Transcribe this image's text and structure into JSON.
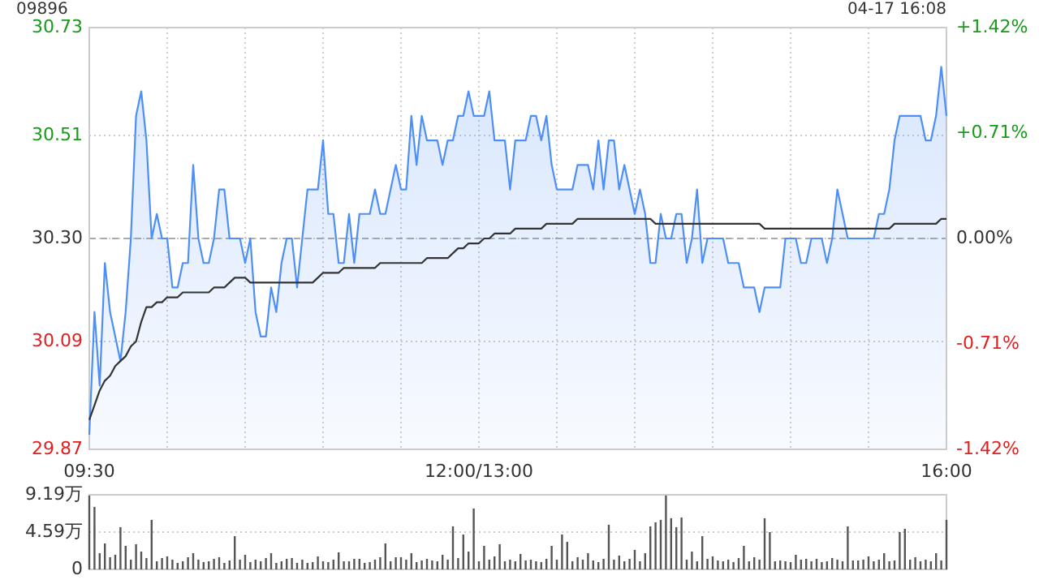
{
  "chart_data": [
    {
      "type": "line",
      "title": "09896",
      "annotations": [
        "04-17 16:08"
      ],
      "categories": [
        "09:30",
        null,
        null,
        null,
        null,
        null,
        null,
        null,
        null,
        null,
        null,
        null,
        null,
        null,
        null,
        null,
        null,
        null,
        null,
        null,
        null,
        null,
        null,
        null,
        null,
        null,
        null,
        null,
        null,
        null,
        null,
        null,
        null,
        null,
        null,
        null,
        null,
        null,
        null,
        null,
        null,
        null,
        null,
        null,
        null,
        null,
        null,
        null,
        null,
        null,
        null,
        null,
        null,
        null,
        null,
        null,
        null,
        null,
        null,
        null,
        null,
        null,
        null,
        null,
        null,
        null,
        null,
        null,
        null,
        null,
        null,
        null,
        null,
        null,
        null,
        "12:00/13:00",
        null,
        null,
        null,
        null,
        null,
        null,
        null,
        null,
        null,
        null,
        null,
        null,
        null,
        null,
        null,
        null,
        null,
        null,
        null,
        null,
        null,
        null,
        null,
        null,
        null,
        null,
        null,
        null,
        null,
        null,
        null,
        null,
        null,
        null,
        null,
        null,
        null,
        null,
        null,
        null,
        null,
        null,
        null,
        null,
        null,
        null,
        null,
        null,
        null,
        null,
        null,
        null,
        null,
        null,
        null,
        null,
        null,
        null,
        null,
        null,
        null,
        null,
        null,
        null,
        null,
        null,
        null,
        null,
        null,
        null,
        null,
        null,
        null,
        null,
        null,
        null,
        null,
        null,
        null,
        null,
        null,
        null,
        null,
        null,
        null,
        null,
        null,
        null,
        null,
        "16:00"
      ],
      "ylim": [
        29.87,
        30.73
      ],
      "yticks": [
        29.87,
        30.09,
        {
          "value": 30.3,
          "label": "30.30"
        },
        30.51,
        30.73
      ],
      "y2lim": [
        -1.42,
        1.42
      ],
      "y2ticks": [
        {
          "value": -1.42,
          "label": "-1.42%"
        },
        {
          "value": -0.71,
          "label": "-0.71%"
        },
        {
          "value": 0,
          "label": "0.00%"
        },
        {
          "value": 0.71,
          "label": "+0.71%"
        },
        {
          "value": 1.42,
          "label": "+1.42%"
        }
      ],
      "grid": true,
      "ref_lines": [
        {
          "axis": "y",
          "value": 30.3,
          "color": "#aaaaaa",
          "line_style": "dashed"
        }
      ],
      "series": [
        {
          "type": "area",
          "color": "#4e8ef7",
          "values": [
            29.9,
            30.15,
            30.0,
            30.25,
            30.15,
            30.1,
            30.05,
            30.15,
            30.3,
            30.55,
            30.6,
            30.5,
            30.3,
            30.35,
            30.3,
            30.3,
            30.2,
            30.2,
            30.25,
            30.25,
            30.45,
            30.3,
            30.25,
            30.25,
            30.3,
            30.4,
            30.4,
            30.3,
            30.3,
            30.3,
            30.25,
            30.3,
            30.15,
            30.1,
            30.1,
            30.2,
            30.15,
            30.25,
            30.3,
            30.3,
            30.2,
            30.3,
            30.4,
            30.4,
            30.4,
            30.5,
            30.35,
            30.35,
            30.25,
            30.25,
            30.35,
            30.25,
            30.35,
            30.35,
            30.35,
            30.4,
            30.35,
            30.35,
            30.4,
            30.45,
            30.4,
            30.4,
            30.55,
            30.45,
            30.55,
            30.5,
            30.5,
            30.5,
            30.45,
            30.5,
            30.5,
            30.55,
            30.55,
            30.6,
            30.55,
            30.55,
            30.55,
            30.6,
            30.5,
            30.5,
            30.5,
            30.4,
            30.5,
            30.5,
            30.5,
            30.55,
            30.55,
            30.5,
            30.55,
            30.45,
            30.4,
            30.4,
            30.4,
            30.4,
            30.45,
            30.45,
            30.45,
            30.4,
            30.5,
            30.4,
            30.5,
            30.5,
            30.4,
            30.45,
            30.4,
            30.35,
            30.4,
            30.35,
            30.25,
            30.25,
            30.35,
            30.3,
            30.3,
            30.35,
            30.35,
            30.25,
            30.3,
            30.4,
            30.25,
            30.3,
            30.3,
            30.3,
            30.3,
            30.25,
            30.25,
            30.25,
            30.2,
            30.2,
            30.2,
            30.15,
            30.2,
            30.2,
            30.2,
            30.2,
            30.3,
            30.3,
            30.3,
            30.25,
            30.25,
            30.3,
            30.3,
            30.3,
            30.25,
            30.3,
            30.4,
            30.35,
            30.3,
            30.3,
            30.3,
            30.3,
            30.3,
            30.3,
            30.35,
            30.35,
            30.4,
            30.5,
            30.55,
            30.55,
            30.55,
            30.55,
            30.55,
            30.5,
            30.5,
            30.55,
            30.65,
            30.55
          ]
        },
        {
          "color": "#333333",
          "values": [
            29.93,
            29.96,
            29.99,
            30.01,
            30.02,
            30.04,
            30.05,
            30.06,
            30.08,
            30.09,
            30.13,
            30.16,
            30.16,
            30.17,
            30.17,
            30.18,
            30.18,
            30.18,
            30.19,
            30.19,
            30.19,
            30.19,
            30.19,
            30.19,
            30.2,
            30.2,
            30.2,
            30.21,
            30.22,
            30.22,
            30.22,
            30.21,
            30.21,
            30.21,
            30.21,
            30.21,
            30.21,
            30.21,
            30.21,
            30.21,
            30.21,
            30.21,
            30.21,
            30.21,
            30.22,
            30.23,
            30.23,
            30.23,
            30.23,
            30.24,
            30.24,
            30.24,
            30.24,
            30.24,
            30.24,
            30.24,
            30.25,
            30.25,
            30.25,
            30.25,
            30.25,
            30.25,
            30.25,
            30.25,
            30.25,
            30.26,
            30.26,
            30.26,
            30.26,
            30.26,
            30.27,
            30.28,
            30.28,
            30.29,
            30.29,
            30.29,
            30.3,
            30.3,
            30.31,
            30.31,
            30.31,
            30.31,
            30.32,
            30.32,
            30.32,
            30.32,
            30.32,
            30.32,
            30.33,
            30.33,
            30.33,
            30.33,
            30.33,
            30.33,
            30.34,
            30.34,
            30.34,
            30.34,
            30.34,
            30.34,
            30.34,
            30.34,
            30.34,
            30.34,
            30.34,
            30.34,
            30.34,
            30.34,
            30.34,
            30.33,
            30.33,
            30.33,
            30.33,
            30.33,
            30.33,
            30.33,
            30.33,
            30.33,
            30.33,
            30.33,
            30.33,
            30.33,
            30.33,
            30.33,
            30.33,
            30.33,
            30.33,
            30.33,
            30.33,
            30.33,
            30.32,
            30.32,
            30.32,
            30.32,
            30.32,
            30.32,
            30.32,
            30.32,
            30.32,
            30.32,
            30.32,
            30.32,
            30.32,
            30.32,
            30.32,
            30.32,
            30.32,
            30.32,
            30.32,
            30.32,
            30.32,
            30.32,
            30.32,
            30.32,
            30.32,
            30.33,
            30.33,
            30.33,
            30.33,
            30.33,
            30.33,
            30.33,
            30.33,
            30.33,
            30.34,
            30.34
          ]
        }
      ]
    },
    {
      "type": "bar",
      "categories": [
        null,
        null,
        null,
        null,
        null,
        null,
        null,
        null,
        null,
        null,
        null,
        null,
        null,
        null,
        null,
        null,
        null,
        null,
        null,
        null,
        null,
        null,
        null,
        null,
        null,
        null,
        null,
        null,
        null,
        null,
        null,
        null,
        null,
        null,
        null,
        null,
        null,
        null,
        null,
        null,
        null,
        null,
        null,
        null,
        null,
        null,
        null,
        null,
        null,
        null,
        null,
        null,
        null,
        null,
        null,
        null,
        null,
        null,
        null,
        null,
        null,
        null,
        null,
        null,
        null,
        null,
        null,
        null,
        null,
        null,
        null,
        null,
        null,
        null,
        null,
        null,
        null,
        null,
        null,
        null,
        null,
        null,
        null,
        null,
        null,
        null,
        null,
        null,
        null,
        null,
        null,
        null,
        null,
        null,
        null,
        null,
        null,
        null,
        null,
        null,
        null,
        null,
        null,
        null,
        null,
        null,
        null,
        null,
        null,
        null,
        null,
        null,
        null,
        null,
        null,
        null,
        null,
        null,
        null,
        null,
        null,
        null,
        null,
        null,
        null,
        null,
        null,
        null,
        null,
        null,
        null,
        null,
        null,
        null,
        null,
        null,
        null,
        null,
        null,
        null,
        null,
        null,
        null,
        null,
        null,
        null,
        null,
        null,
        null,
        null,
        null,
        null,
        null,
        null,
        null,
        null,
        null,
        null,
        null,
        null,
        null,
        null,
        null,
        null,
        null,
        null
      ],
      "ylim": [
        0,
        9.19
      ],
      "yticks": [
        0,
        {
          "value": 4.59,
          "label": "4.59万"
        },
        {
          "value": 9.19,
          "label": "9.19万"
        }
      ],
      "grid": "y",
      "color": "#555555",
      "values": [
        9.1,
        7.7,
        2.0,
        3.2,
        1.5,
        1.8,
        5.2,
        2.9,
        1.2,
        3.1,
        2.2,
        1.4,
        6.1,
        1.0,
        1.4,
        1.6,
        1.2,
        0.8,
        1.0,
        1.5,
        2.0,
        1.2,
        0.9,
        1.0,
        1.3,
        1.5,
        0.8,
        1.1,
        4.1,
        1.2,
        1.8,
        0.9,
        1.2,
        1.0,
        1.4,
        2.0,
        0.8,
        1.0,
        1.3,
        1.4,
        0.8,
        1.2,
        0.8,
        0.9,
        1.6,
        1.0,
        0.9,
        1.2,
        2.1,
        1.0,
        1.0,
        1.3,
        1.3,
        0.8,
        0.9,
        1.2,
        1.5,
        3.2,
        1.0,
        1.5,
        1.5,
        1.2,
        2.0,
        0.9,
        1.1,
        1.3,
        1.1,
        1.0,
        1.8,
        1.2,
        5.3,
        1.4,
        4.3,
        2.2,
        7.5,
        1.0,
        2.9,
        1.2,
        1.6,
        3.1,
        1.0,
        1.2,
        1.0,
        1.9,
        1.1,
        1.2,
        1.0,
        0.9,
        1.3,
        2.9,
        1.2,
        4.3,
        3.4,
        1.0,
        1.5,
        1.2,
        2.0,
        1.1,
        0.9,
        1.3,
        5.5,
        1.2,
        1.7,
        1.0,
        1.3,
        2.4,
        1.0,
        2.0,
        5.3,
        5.8,
        6.1,
        9.1,
        6.3,
        5.2,
        6.4,
        1.2,
        2.2,
        1.0,
        4.1,
        1.3,
        1.6,
        1.1,
        1.0,
        1.2,
        0.9,
        1.4,
        2.9,
        1.0,
        1.5,
        1.2,
        6.3,
        4.6,
        1.0,
        1.1,
        1.0,
        0.9,
        1.8,
        1.2,
        1.3,
        1.0,
        1.3,
        0.9,
        1.0,
        1.4,
        1.2,
        1.0,
        5.3,
        1.1,
        1.1,
        1.2,
        1.6,
        1.0,
        1.2,
        2.0,
        1.0,
        1.1,
        4.6,
        5.0,
        1.2,
        1.5,
        1.0,
        1.2,
        1.0,
        2.0,
        1.1,
        6.1
      ]
    }
  ]
}
